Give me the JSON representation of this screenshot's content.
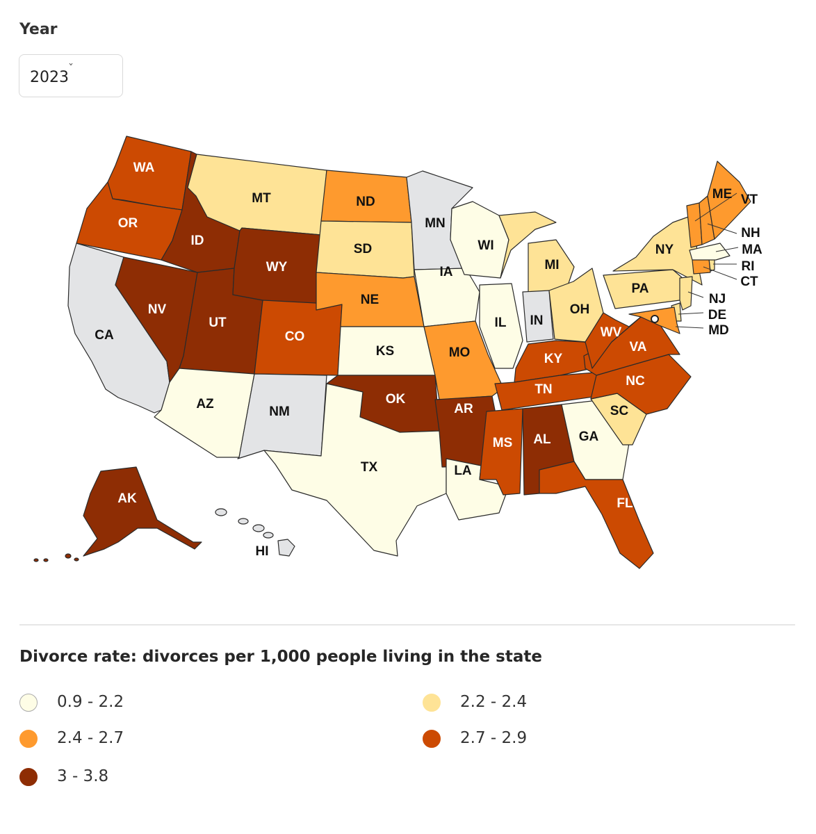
{
  "year_filter": {
    "label": "Year",
    "value": "2023"
  },
  "legend": {
    "title": "Divorce rate: divorces per 1,000 people living in the state",
    "bins": [
      {
        "key": "b1",
        "label": "0.9 - 2.2",
        "color": "#fefde6"
      },
      {
        "key": "b2",
        "label": "2.2 - 2.4",
        "color": "#fee396"
      },
      {
        "key": "b3",
        "label": "2.4 - 2.7",
        "color": "#fe9a2e"
      },
      {
        "key": "b4",
        "label": "2.7 - 2.9",
        "color": "#cc4a02"
      },
      {
        "key": "b5",
        "label": "3 - 3.8",
        "color": "#8e2d04"
      }
    ],
    "no_data_color": "#e3e4e6"
  },
  "states": [
    {
      "abbr": "WA",
      "bin": "b4"
    },
    {
      "abbr": "OR",
      "bin": "b4"
    },
    {
      "abbr": "CA",
      "bin": "none"
    },
    {
      "abbr": "ID",
      "bin": "b5"
    },
    {
      "abbr": "NV",
      "bin": "b5"
    },
    {
      "abbr": "UT",
      "bin": "b5"
    },
    {
      "abbr": "AZ",
      "bin": "b1"
    },
    {
      "abbr": "MT",
      "bin": "b2"
    },
    {
      "abbr": "WY",
      "bin": "b5"
    },
    {
      "abbr": "CO",
      "bin": "b4"
    },
    {
      "abbr": "NM",
      "bin": "none"
    },
    {
      "abbr": "ND",
      "bin": "b3"
    },
    {
      "abbr": "SD",
      "bin": "b2"
    },
    {
      "abbr": "NE",
      "bin": "b3"
    },
    {
      "abbr": "KS",
      "bin": "b1"
    },
    {
      "abbr": "OK",
      "bin": "b5"
    },
    {
      "abbr": "TX",
      "bin": "b1"
    },
    {
      "abbr": "MN",
      "bin": "none"
    },
    {
      "abbr": "IA",
      "bin": "b1"
    },
    {
      "abbr": "MO",
      "bin": "b3"
    },
    {
      "abbr": "AR",
      "bin": "b5"
    },
    {
      "abbr": "LA",
      "bin": "b1"
    },
    {
      "abbr": "WI",
      "bin": "b1"
    },
    {
      "abbr": "IL",
      "bin": "b1"
    },
    {
      "abbr": "MI",
      "bin": "b2"
    },
    {
      "abbr": "IN",
      "bin": "none"
    },
    {
      "abbr": "OH",
      "bin": "b2"
    },
    {
      "abbr": "KY",
      "bin": "b4"
    },
    {
      "abbr": "TN",
      "bin": "b4"
    },
    {
      "abbr": "MS",
      "bin": "b4"
    },
    {
      "abbr": "AL",
      "bin": "b5"
    },
    {
      "abbr": "GA",
      "bin": "b1"
    },
    {
      "abbr": "FL",
      "bin": "b4"
    },
    {
      "abbr": "SC",
      "bin": "b2"
    },
    {
      "abbr": "NC",
      "bin": "b4"
    },
    {
      "abbr": "VA",
      "bin": "b4"
    },
    {
      "abbr": "WV",
      "bin": "b4"
    },
    {
      "abbr": "PA",
      "bin": "b2"
    },
    {
      "abbr": "NY",
      "bin": "b2"
    },
    {
      "abbr": "NJ",
      "bin": "b2"
    },
    {
      "abbr": "DE",
      "bin": "b2"
    },
    {
      "abbr": "MD",
      "bin": "b3"
    },
    {
      "abbr": "CT",
      "bin": "b3"
    },
    {
      "abbr": "RI",
      "bin": "b2"
    },
    {
      "abbr": "MA",
      "bin": "b1"
    },
    {
      "abbr": "VT",
      "bin": "b3"
    },
    {
      "abbr": "NH",
      "bin": "b3"
    },
    {
      "abbr": "ME",
      "bin": "b3"
    },
    {
      "abbr": "AK",
      "bin": "b5"
    },
    {
      "abbr": "HI",
      "bin": "none"
    }
  ]
}
